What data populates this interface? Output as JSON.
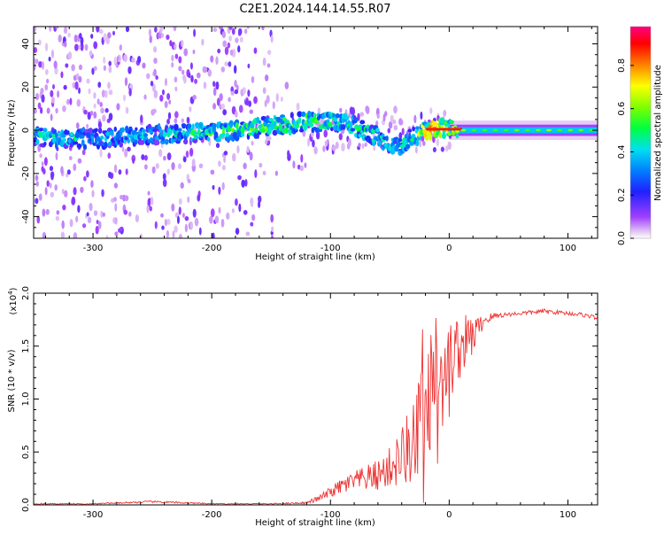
{
  "title": "C2E1.2024.144.14.55.R07",
  "chart_data": [
    {
      "type": "heatmap",
      "title": "C2E1.2024.144.14.55.R07",
      "xlabel": "Height of straight line (km)",
      "ylabel": "Frequency (Hz)",
      "xlim": [
        -350,
        125
      ],
      "ylim": [
        -50,
        48
      ],
      "x_ticks": [
        "-300",
        "-200",
        "-100",
        "0",
        "100"
      ],
      "x_tick_values": [
        -300,
        -200,
        -100,
        0,
        100
      ],
      "y_ticks": [
        "-40",
        "-20",
        "0",
        "20",
        "40"
      ],
      "y_tick_values": [
        -40,
        -20,
        0,
        20,
        40
      ],
      "ridge": {
        "x": [
          -350,
          -300,
          -250,
          -200,
          -150,
          -120,
          -100,
          -80,
          -60,
          -45,
          -30,
          -20,
          -10,
          0,
          20,
          60,
          125
        ],
        "frequency": [
          -3,
          -4,
          -2,
          -1,
          2,
          4,
          4,
          2,
          -3,
          -8,
          -3,
          0,
          0,
          2,
          0,
          0,
          0
        ],
        "amplitude": [
          0.5,
          0.45,
          0.45,
          0.55,
          0.6,
          0.6,
          0.55,
          0.55,
          0.5,
          0.45,
          0.55,
          0.8,
          0.85,
          0.7,
          0.7,
          0.55,
          0.45
        ]
      },
      "colorbar": {
        "label": "Normalized spectral amplitude",
        "range": [
          0,
          0.98
        ],
        "ticks": [
          "0.0",
          "0.2",
          "0.4",
          "0.6",
          "0.8"
        ],
        "tick_values": [
          0.0,
          0.2,
          0.4,
          0.6,
          0.8
        ]
      }
    },
    {
      "type": "line",
      "xlabel": "Height of straight line (km)",
      "ylabel": "SNR (10 * v/v)",
      "y_multiplier": "(x10",
      "y_multiplier_exp": "4",
      "y_multiplier_close": ")",
      "xlim": [
        -350,
        125
      ],
      "ylim": [
        0,
        2.0
      ],
      "x_ticks": [
        "-300",
        "-200",
        "-100",
        "0",
        "100"
      ],
      "x_tick_values": [
        -300,
        -200,
        -100,
        0,
        100
      ],
      "y_ticks": [
        "0.0",
        "0.5",
        "1.0",
        "1.5",
        "2.0"
      ],
      "y_tick_values": [
        0.0,
        0.5,
        1.0,
        1.5,
        2.0
      ],
      "series": [
        {
          "name": "SNR",
          "color": "#ee3333",
          "x": [
            -350,
            -300,
            -250,
            -200,
            -150,
            -120,
            -110,
            -100,
            -90,
            -80,
            -70,
            -60,
            -50,
            -40,
            -30,
            -25,
            -20,
            -15,
            -10,
            -5,
            0,
            5,
            10,
            15,
            20,
            25,
            30,
            40,
            50,
            60,
            70,
            80,
            90,
            100,
            110,
            120,
            125
          ],
          "values": [
            0.01,
            0.01,
            0.03,
            0.01,
            0.01,
            0.02,
            0.06,
            0.12,
            0.18,
            0.22,
            0.25,
            0.28,
            0.35,
            0.45,
            0.6,
            0.75,
            0.95,
            1.1,
            1.15,
            1.25,
            1.35,
            1.45,
            1.5,
            1.55,
            1.6,
            1.68,
            1.75,
            1.79,
            1.8,
            1.81,
            1.82,
            1.83,
            1.82,
            1.81,
            1.8,
            1.78,
            1.76
          ],
          "noise": [
            0.005,
            0.005,
            0.01,
            0.005,
            0.005,
            0.01,
            0.03,
            0.05,
            0.08,
            0.1,
            0.12,
            0.15,
            0.2,
            0.3,
            0.45,
            0.55,
            0.6,
            0.6,
            0.5,
            0.45,
            0.4,
            0.35,
            0.3,
            0.25,
            0.2,
            0.1,
            0.06,
            0.03,
            0.02,
            0.02,
            0.02,
            0.02,
            0.02,
            0.02,
            0.02,
            0.02,
            0.02
          ]
        }
      ]
    }
  ]
}
